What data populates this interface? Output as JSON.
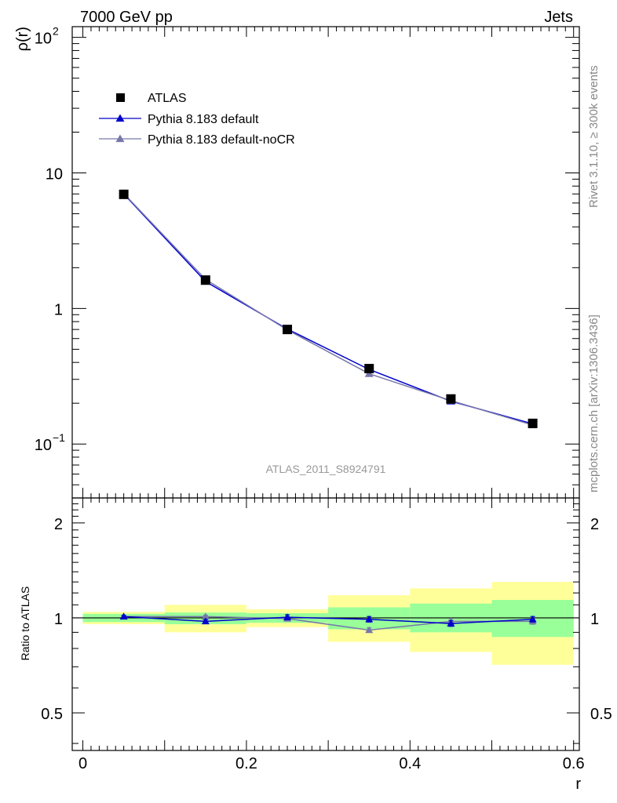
{
  "header": {
    "left": "7000 GeV pp",
    "right": "Jets",
    "analysis": "ATLAS_2011_S8924791",
    "side_top": "Rivet 3.1.10, ≥ 300k events",
    "side_bottom": "mcplots.cern.ch [arXiv:1306.3436]"
  },
  "chart_data": [
    {
      "type": "line",
      "name": "main",
      "ylabel": "ρ(r)",
      "yscale": "log",
      "ylim": [
        0.04,
        120
      ],
      "xlim": [
        -0.013,
        0.607
      ],
      "y_tick_labels": [
        {
          "value": 100,
          "base": "10",
          "exp": "2"
        },
        {
          "value": 10,
          "base": "10",
          "exp": ""
        },
        {
          "value": 1,
          "base": "1",
          "exp": ""
        },
        {
          "value": 0.1,
          "base": "10",
          "exp": "−1"
        }
      ],
      "x": [
        0.05,
        0.15,
        0.25,
        0.35,
        0.45,
        0.55
      ],
      "series": [
        {
          "name": "ATLAS",
          "color": "#000000",
          "marker": "square",
          "values": [
            6.95,
            1.62,
            0.7,
            0.36,
            0.215,
            0.142
          ]
        },
        {
          "name": "Pythia 8.183 default",
          "color": "#0000cc",
          "marker": "triangle",
          "values": [
            7.0,
            1.58,
            0.705,
            0.355,
            0.207,
            0.141
          ]
        },
        {
          "name": "Pythia 8.183 default-noCR",
          "color": "#7777aa",
          "marker": "triangle",
          "values": [
            7.05,
            1.64,
            0.695,
            0.33,
            0.209,
            0.138
          ]
        }
      ]
    },
    {
      "type": "line",
      "name": "ratio",
      "ylabel": "Ratio to ATLAS",
      "xlabel": "r",
      "yscale": "log",
      "ylim": [
        0.38,
        2.4
      ],
      "xlim": [
        -0.013,
        0.607
      ],
      "x_ticks": [
        {
          "value": 0,
          "label": "0"
        },
        {
          "value": 0.2,
          "label": "0.2"
        },
        {
          "value": 0.4,
          "label": "0.4"
        },
        {
          "value": 0.6,
          "label": "0.6"
        }
      ],
      "y_ticks": [
        {
          "value": 2,
          "label": "2"
        },
        {
          "value": 1,
          "label": "1"
        },
        {
          "value": 0.5,
          "label": "0.5"
        }
      ],
      "bins": [
        [
          0.0,
          0.1
        ],
        [
          0.1,
          0.2
        ],
        [
          0.2,
          0.3
        ],
        [
          0.3,
          0.4
        ],
        [
          0.4,
          0.5
        ],
        [
          0.5,
          0.6
        ]
      ],
      "band_stat": [
        [
          0.97,
          1.03
        ],
        [
          0.955,
          1.04
        ],
        [
          0.965,
          1.035
        ],
        [
          0.92,
          1.08
        ],
        [
          0.9,
          1.11
        ],
        [
          0.87,
          1.14
        ]
      ],
      "band_total": [
        [
          0.955,
          1.045
        ],
        [
          0.9,
          1.1
        ],
        [
          0.935,
          1.065
        ],
        [
          0.84,
          1.18
        ],
        [
          0.78,
          1.24
        ],
        [
          0.71,
          1.3
        ]
      ],
      "band_colors": {
        "stat": "#99ff99",
        "total": "#ffff99"
      },
      "x": [
        0.05,
        0.15,
        0.25,
        0.35,
        0.45,
        0.55
      ],
      "series": [
        {
          "name": "Pythia 8.183 default",
          "color": "#0000cc",
          "values": [
            1.01,
            0.975,
            1.005,
            0.99,
            0.96,
            0.99
          ],
          "errors": [
            0.008,
            0.012,
            0.018,
            0.02,
            0.02,
            0.02
          ]
        },
        {
          "name": "Pythia 8.183 default-noCR",
          "color": "#7777aa",
          "values": [
            1.01,
            1.01,
            0.995,
            0.915,
            0.975,
            0.975
          ],
          "errors": [
            0.008,
            0.01,
            0.015,
            0.015,
            0.02,
            0.02
          ]
        }
      ]
    }
  ]
}
